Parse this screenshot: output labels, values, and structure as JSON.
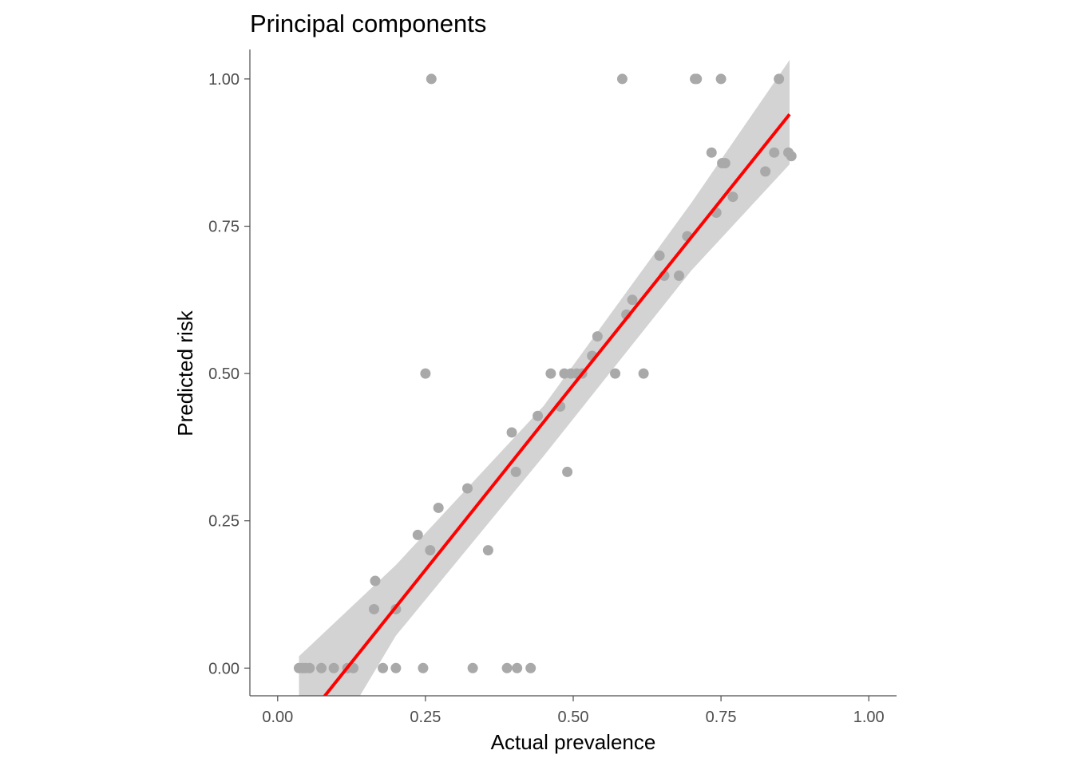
{
  "chart_data": {
    "type": "scatter",
    "title": "Principal components",
    "xlabel": "Actual prevalence",
    "ylabel": "Predicted risk",
    "xlim": [
      -0.047,
      1.047
    ],
    "ylim": [
      -0.047,
      1.05
    ],
    "x_ticks": [
      0.0,
      0.25,
      0.5,
      0.75,
      1.0
    ],
    "y_ticks": [
      0.0,
      0.25,
      0.5,
      0.75,
      1.0
    ],
    "x_tick_labels": [
      "0.00",
      "0.25",
      "0.50",
      "0.75",
      "1.00"
    ],
    "y_tick_labels": [
      "0.00",
      "0.25",
      "0.50",
      "0.75",
      "1.00"
    ],
    "grid": false,
    "legend": "none",
    "colors": {
      "points": "#a9a9a9",
      "fit_line": "#ff0000",
      "ribbon": "#d3d3d3",
      "axis": "#4d4d4d"
    },
    "points": [
      {
        "x": 0.036,
        "y": 0.0
      },
      {
        "x": 0.042,
        "y": 0.0
      },
      {
        "x": 0.047,
        "y": 0.0
      },
      {
        "x": 0.054,
        "y": 0.0
      },
      {
        "x": 0.074,
        "y": 0.0
      },
      {
        "x": 0.095,
        "y": 0.0
      },
      {
        "x": 0.118,
        "y": 0.0
      },
      {
        "x": 0.128,
        "y": 0.0
      },
      {
        "x": 0.178,
        "y": 0.0
      },
      {
        "x": 0.2,
        "y": 0.0
      },
      {
        "x": 0.246,
        "y": 0.0
      },
      {
        "x": 0.33,
        "y": 0.0
      },
      {
        "x": 0.388,
        "y": 0.0
      },
      {
        "x": 0.405,
        "y": 0.0
      },
      {
        "x": 0.428,
        "y": 0.0
      },
      {
        "x": 0.163,
        "y": 0.1
      },
      {
        "x": 0.2,
        "y": 0.1
      },
      {
        "x": 0.165,
        "y": 0.148
      },
      {
        "x": 0.258,
        "y": 0.2
      },
      {
        "x": 0.356,
        "y": 0.2
      },
      {
        "x": 0.237,
        "y": 0.226
      },
      {
        "x": 0.272,
        "y": 0.272
      },
      {
        "x": 0.321,
        "y": 0.305
      },
      {
        "x": 0.403,
        "y": 0.333
      },
      {
        "x": 0.49,
        "y": 0.333
      },
      {
        "x": 0.396,
        "y": 0.4
      },
      {
        "x": 0.44,
        "y": 0.428
      },
      {
        "x": 0.478,
        "y": 0.444
      },
      {
        "x": 0.25,
        "y": 0.5
      },
      {
        "x": 0.462,
        "y": 0.5
      },
      {
        "x": 0.485,
        "y": 0.5
      },
      {
        "x": 0.496,
        "y": 0.5
      },
      {
        "x": 0.506,
        "y": 0.5
      },
      {
        "x": 0.515,
        "y": 0.5
      },
      {
        "x": 0.571,
        "y": 0.5
      },
      {
        "x": 0.619,
        "y": 0.5
      },
      {
        "x": 0.532,
        "y": 0.53
      },
      {
        "x": 0.541,
        "y": 0.563
      },
      {
        "x": 0.59,
        "y": 0.6
      },
      {
        "x": 0.6,
        "y": 0.625
      },
      {
        "x": 0.654,
        "y": 0.666
      },
      {
        "x": 0.679,
        "y": 0.666
      },
      {
        "x": 0.646,
        "y": 0.7
      },
      {
        "x": 0.693,
        "y": 0.733
      },
      {
        "x": 0.742,
        "y": 0.773
      },
      {
        "x": 0.77,
        "y": 0.8
      },
      {
        "x": 0.825,
        "y": 0.843
      },
      {
        "x": 0.752,
        "y": 0.857
      },
      {
        "x": 0.757,
        "y": 0.857
      },
      {
        "x": 0.734,
        "y": 0.875
      },
      {
        "x": 0.84,
        "y": 0.875
      },
      {
        "x": 0.864,
        "y": 0.875
      },
      {
        "x": 0.869,
        "y": 0.869
      },
      {
        "x": 0.26,
        "y": 1.0
      },
      {
        "x": 0.583,
        "y": 1.0
      },
      {
        "x": 0.706,
        "y": 1.0
      },
      {
        "x": 0.709,
        "y": 1.0
      },
      {
        "x": 0.75,
        "y": 1.0
      },
      {
        "x": 0.848,
        "y": 1.0
      }
    ],
    "fit_line": {
      "x": [
        0.036,
        0.866
      ],
      "y": [
        -0.102,
        0.94
      ]
    },
    "confidence_band": {
      "x": [
        0.036,
        0.2,
        0.45,
        0.7,
        0.866
      ],
      "lower": [
        -0.22,
        0.055,
        0.36,
        0.675,
        0.855
      ],
      "upper": [
        0.02,
        0.175,
        0.445,
        0.79,
        1.032
      ]
    }
  }
}
